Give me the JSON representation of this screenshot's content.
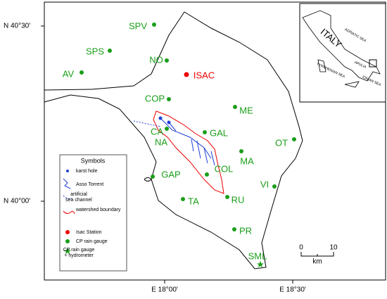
{
  "axes": {
    "lat_top": "N 40°30'",
    "lat_bottom": "N 40°00'",
    "lon_left": "E 18°00'",
    "lon_right": "E 18°30'"
  },
  "stations": [
    "SPV",
    "SPS",
    "NO",
    "AV",
    "ISAC",
    "COP",
    "ME",
    "CA",
    "GAL",
    "NA",
    "OT",
    "MA",
    "COL",
    "GAP",
    "VI",
    "TA",
    "RU",
    "PR",
    "SML"
  ],
  "legend": {
    "title": "Symbols",
    "items": [
      "karst hole",
      "Asso Torrent",
      "artificial sea channel",
      "watershed boundary",
      "Isac Station",
      "CP rain gauge",
      "CP rain gauge + hydrometer"
    ]
  },
  "scale": {
    "start": "0",
    "end": "10",
    "unit": "km"
  },
  "inset": {
    "country": "ITALY",
    "labels": [
      "ADRIATIC SEA",
      "TYRRHENIAN SEA",
      "APULIA",
      "IONIAN SEA"
    ]
  }
}
